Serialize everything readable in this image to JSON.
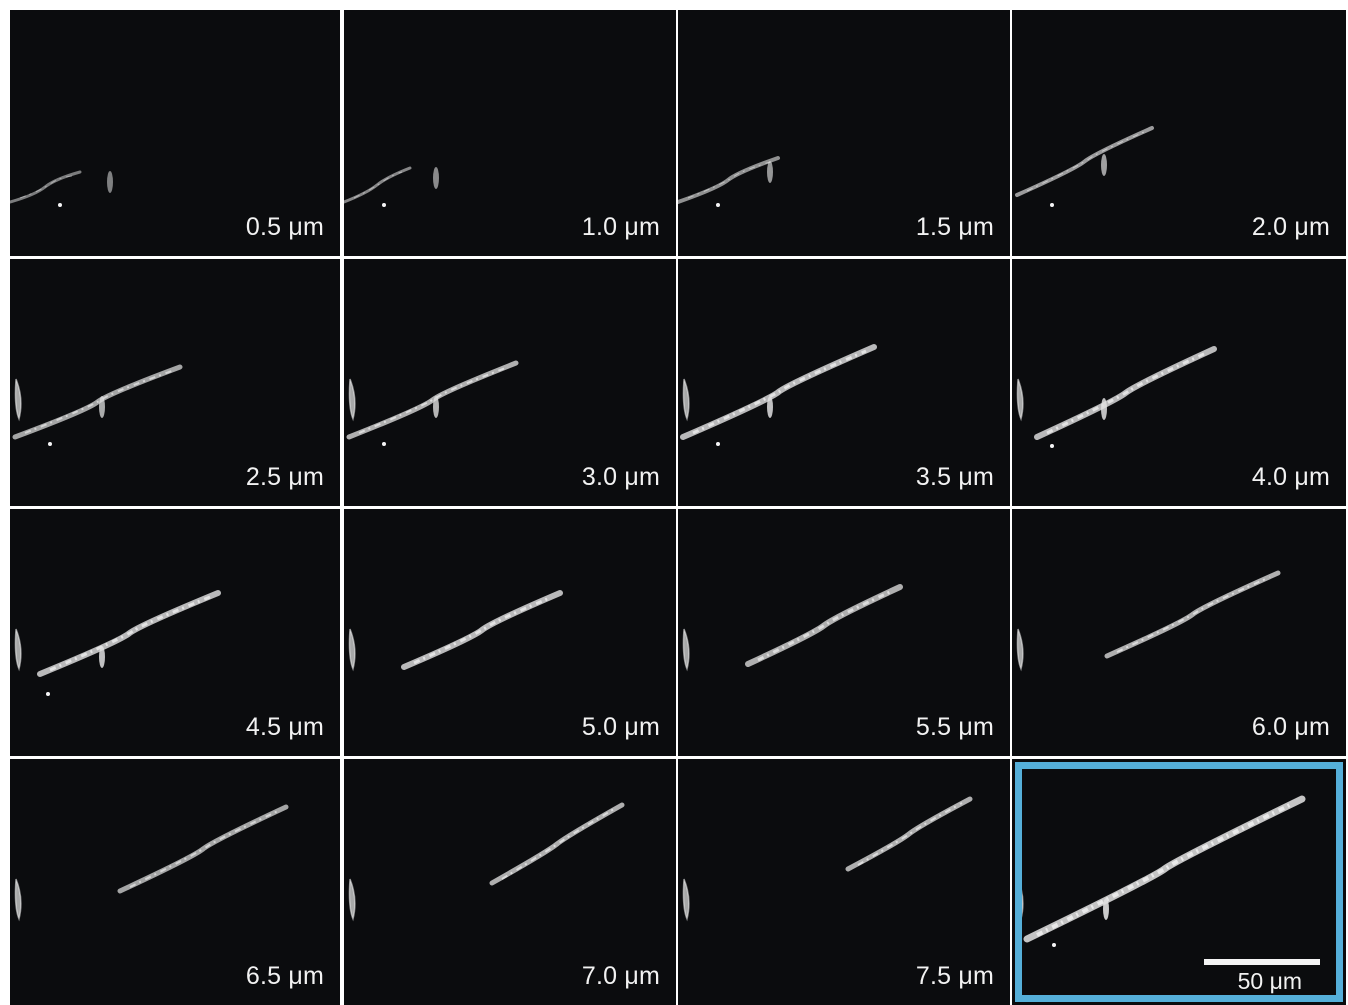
{
  "panels": [
    {
      "label": "0.5 μm"
    },
    {
      "label": "1.0 μm"
    },
    {
      "label": "1.5 μm"
    },
    {
      "label": "2.0 μm"
    },
    {
      "label": "2.5 μm"
    },
    {
      "label": "3.0 μm"
    },
    {
      "label": "3.5 μm"
    },
    {
      "label": "4.0 μm"
    },
    {
      "label": "4.5 μm"
    },
    {
      "label": "5.0 μm"
    },
    {
      "label": "5.5 μm"
    },
    {
      "label": "6.0 μm"
    },
    {
      "label": "6.5 μm"
    },
    {
      "label": "7.0 μm"
    },
    {
      "label": "7.5 μm"
    },
    {
      "label": ""
    }
  ],
  "scale_bar": {
    "label": "50 μm"
  },
  "colors": {
    "background": "#0b0c0e",
    "highlight": "#55afd9",
    "text": "#f2f2f2"
  }
}
